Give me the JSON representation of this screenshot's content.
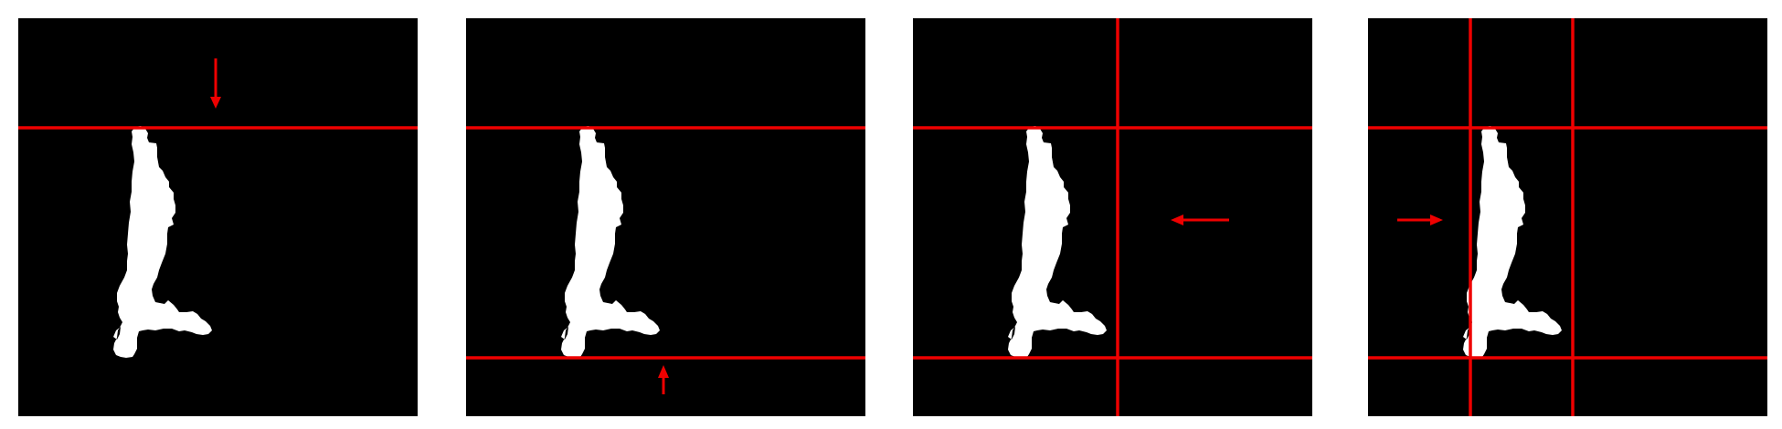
{
  "colors": {
    "background": "#ffffff",
    "panel": "#000000",
    "mask": "#ffffff",
    "line": "#ee0000"
  },
  "panels": [
    {
      "id": "step-1",
      "arrow": "down-arrow-icon"
    },
    {
      "id": "step-2",
      "arrow": "up-arrow-icon"
    },
    {
      "id": "step-3",
      "arrow": "left-arrow-icon"
    },
    {
      "id": "step-4",
      "arrow": "right-arrow-icon"
    }
  ]
}
